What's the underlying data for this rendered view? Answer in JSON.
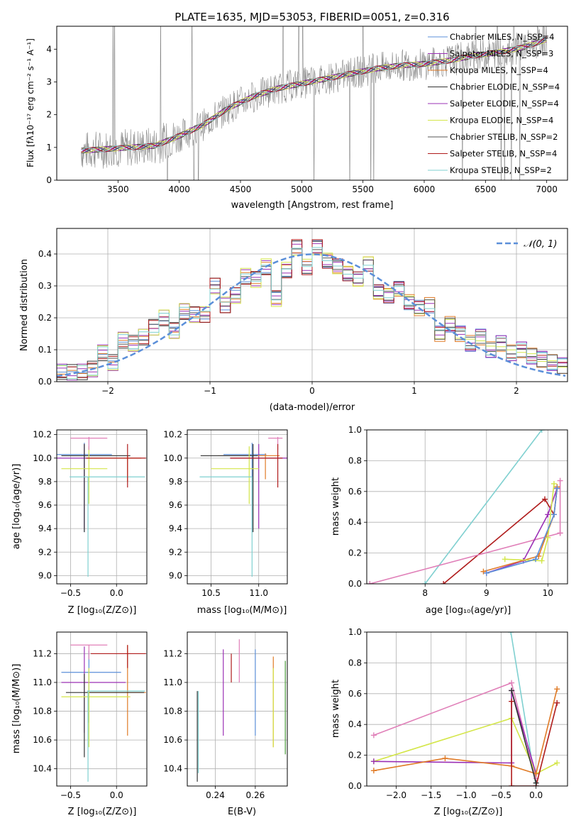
{
  "colors": {
    "grid": "#b0b0b0",
    "chabrier_miles": "#5b8fd9",
    "salpeter_miles": "#9b30b5",
    "kroupa_miles": "#e07b27",
    "chabrier_elodie": "#333333",
    "salpeter_elodie": "#9b30b5",
    "kroupa_elodie": "#d4e64a",
    "chabrier_stelib": "#555555",
    "salpeter_stelib": "#b01c1c",
    "kroupa_stelib": "#7fd0d0",
    "pink": "#e07fb8",
    "green": "#4a9a3a",
    "normal": "#5b8fd9"
  },
  "chart_data": [
    {
      "id": "spectrum",
      "type": "line",
      "title": "PLATE=1635, MJD=53053, FIBERID=0051, z=0.316",
      "xlabel": "wavelength [Angstrom, rest frame]",
      "ylabel": "Flux [fλ10⁻¹⁷ erg cm⁻² s⁻¹ A⁻¹]",
      "xlim": [
        3000,
        7170
      ],
      "ylim": [
        0,
        4.7
      ],
      "xticks": [
        "3500",
        "4000",
        "4500",
        "5000",
        "5500",
        "6000",
        "6500",
        "7000"
      ],
      "yticks": [
        "0",
        "1",
        "2",
        "3",
        "4"
      ],
      "legend_position": "top-right",
      "series": [
        {
          "name": "Chabrier MILES, N_SSP=4"
        },
        {
          "name": "Salpeter MILES, N_SSP=3"
        },
        {
          "name": "Kroupa MILES, N_SSP=4"
        },
        {
          "name": "Chabrier ELODIE, N_SSP=4"
        },
        {
          "name": "Salpeter ELODIE, N_SSP=4"
        },
        {
          "name": "Kroupa ELODIE, N_SSP=4"
        },
        {
          "name": "Chabrier STELIB, N_SSP=2"
        },
        {
          "name": "Salpeter STELIB, N_SSP=4"
        },
        {
          "name": "Kroupa STELIB, N_SSP=2"
        }
      ],
      "continuum_x": [
        3200,
        3400,
        3600,
        3800,
        4000,
        4200,
        4400,
        4600,
        4800,
        5000,
        5200,
        5400,
        5600,
        5800,
        6000,
        6200,
        6400,
        6600,
        6800,
        7000
      ],
      "continuum_y": [
        0.9,
        0.95,
        1.0,
        1.05,
        1.35,
        1.7,
        2.2,
        2.55,
        2.8,
        2.95,
        3.1,
        3.25,
        3.4,
        3.5,
        3.55,
        3.65,
        3.8,
        3.9,
        4.05,
        4.3
      ]
    },
    {
      "id": "residuals",
      "type": "line",
      "xlabel": "(data-model)/error",
      "ylabel": "Normed distribution",
      "xlim": [
        -2.5,
        2.5
      ],
      "ylim": [
        0,
        0.48
      ],
      "xticks": [
        "−2",
        "−1",
        "0",
        "1",
        "2"
      ],
      "yticks": [
        "0.0",
        "0.1",
        "0.2",
        "0.3",
        "0.4"
      ],
      "legend": "𝒩(0, 1)",
      "gaussian": {
        "mean": 0,
        "sigma": 1
      },
      "hist_centers": [
        -2.45,
        -2.35,
        -2.25,
        -2.15,
        -2.05,
        -1.95,
        -1.85,
        -1.75,
        -1.65,
        -1.55,
        -1.45,
        -1.35,
        -1.25,
        -1.15,
        -1.05,
        -0.95,
        -0.85,
        -0.75,
        -0.65,
        -0.55,
        -0.45,
        -0.35,
        -0.25,
        -0.15,
        -0.05,
        0.05,
        0.15,
        0.25,
        0.35,
        0.45,
        0.55,
        0.65,
        0.75,
        0.85,
        0.95,
        1.05,
        1.15,
        1.25,
        1.35,
        1.45,
        1.55,
        1.65,
        1.75,
        1.85,
        1.95,
        2.05,
        2.15,
        2.25,
        2.35,
        2.45
      ],
      "hist_values": [
        0.03,
        0.03,
        0.03,
        0.04,
        0.09,
        0.06,
        0.13,
        0.12,
        0.14,
        0.17,
        0.2,
        0.16,
        0.22,
        0.21,
        0.21,
        0.3,
        0.24,
        0.27,
        0.33,
        0.32,
        0.36,
        0.26,
        0.35,
        0.42,
        0.36,
        0.42,
        0.38,
        0.36,
        0.34,
        0.32,
        0.37,
        0.28,
        0.27,
        0.29,
        0.25,
        0.23,
        0.24,
        0.15,
        0.18,
        0.15,
        0.12,
        0.14,
        0.1,
        0.12,
        0.09,
        0.1,
        0.08,
        0.07,
        0.06,
        0.05
      ]
    },
    {
      "id": "age_vs_Z",
      "type": "scatter",
      "xlabel": "Z [log₁₀(Z/Z⊙)]",
      "ylabel": "age  [log₁₀(age/yr)]",
      "xlim": [
        -0.65,
        0.33
      ],
      "ylim": [
        8.93,
        10.24
      ],
      "xticks": [
        "−0.5",
        "0.0"
      ],
      "yticks": [
        "9.0",
        "9.2",
        "9.4",
        "9.6",
        "9.8",
        "10.0",
        "10.2"
      ],
      "points": [
        {
          "x": -0.35,
          "y": 10.03,
          "xerr": [
            0.5,
            0.3
          ],
          "yerr": [
            0.66,
            0.1
          ],
          "color": "chabrier_miles"
        },
        {
          "x": -0.35,
          "y": 10.0,
          "xerr": [
            0.3,
            0.2
          ],
          "yerr": [
            0.6,
            0.12
          ],
          "color": "salpeter_miles"
        },
        {
          "x": 0.12,
          "y": 10.0,
          "xerr": [
            0.45,
            0.15
          ],
          "yerr": [
            0.2,
            0.02
          ],
          "color": "kroupa_miles"
        },
        {
          "x": -0.35,
          "y": 10.02,
          "xerr": [
            0.25,
            0.5
          ],
          "yerr": [
            0.65,
            0.1
          ],
          "color": "chabrier_elodie"
        },
        {
          "x": -0.3,
          "y": 9.91,
          "xerr": [
            0.3,
            0.2
          ],
          "yerr": [
            0.3,
            0.19
          ],
          "color": "kroupa_elodie"
        },
        {
          "x": -0.31,
          "y": 9.84,
          "xerr": [
            0.2,
            0.62
          ],
          "yerr": [
            0.85,
            0.0
          ],
          "color": "kroupa_stelib"
        },
        {
          "x": -0.3,
          "y": 10.17,
          "xerr": [
            0.2,
            0.2
          ],
          "yerr": [
            0.1,
            0.01
          ],
          "color": "pink"
        },
        {
          "x": 0.12,
          "y": 10.0,
          "xerr": [
            0.45,
            0.2
          ],
          "yerr": [
            0.25,
            0.12
          ],
          "color": "salpeter_stelib"
        }
      ]
    },
    {
      "id": "age_vs_mass",
      "type": "scatter",
      "xlabel": "mass [log₁₀(M/M⊙)]",
      "xlim": [
        10.25,
        11.3
      ],
      "ylim": [
        8.93,
        10.24
      ],
      "xticks": [
        "10.5",
        "11.0"
      ],
      "yticks": [
        "9.0",
        "9.2",
        "9.4",
        "9.6",
        "9.8",
        "10.0",
        "10.2"
      ],
      "points": [
        {
          "x": 10.93,
          "y": 10.03,
          "xerr": [
            0.3,
            0.15
          ],
          "yerr": [
            0.66,
            0.1
          ],
          "color": "chabrier_miles"
        },
        {
          "x": 11.0,
          "y": 10.0,
          "xerr": [
            0.3,
            0.3
          ],
          "yerr": [
            0.6,
            0.12
          ],
          "color": "salpeter_miles"
        },
        {
          "x": 11.07,
          "y": 10.02,
          "xerr": [
            0.5,
            0.15
          ],
          "yerr": [
            0.2,
            0.02
          ],
          "color": "kroupa_miles"
        },
        {
          "x": 10.94,
          "y": 10.02,
          "xerr": [
            0.55,
            0.05
          ],
          "yerr": [
            0.65,
            0.1
          ],
          "color": "chabrier_elodie"
        },
        {
          "x": 10.9,
          "y": 9.91,
          "xerr": [
            0.4,
            0.1
          ],
          "yerr": [
            0.3,
            0.19
          ],
          "color": "kroupa_elodie"
        },
        {
          "x": 10.93,
          "y": 9.84,
          "xerr": [
            0.55,
            0.0
          ],
          "yerr": [
            0.85,
            0.0
          ],
          "color": "kroupa_stelib"
        },
        {
          "x": 11.2,
          "y": 10.17,
          "xerr": [
            0.1,
            0.05
          ],
          "yerr": [
            0.1,
            0.01
          ],
          "color": "pink"
        },
        {
          "x": 11.2,
          "y": 10.0,
          "xerr": [
            0.5,
            0.05
          ],
          "yerr": [
            0.25,
            0.12
          ],
          "color": "salpeter_stelib"
        }
      ]
    },
    {
      "id": "weight_vs_age",
      "type": "line",
      "xlabel": "age  [log₁₀(age/yr)]",
      "ylabel": "mass weight",
      "xlim": [
        7.05,
        10.32
      ],
      "ylim": [
        0,
        1.0
      ],
      "xticks": [
        "8",
        "9",
        "10"
      ],
      "yticks": [
        "0.0",
        "0.2",
        "0.4",
        "0.6",
        "0.8",
        "1.0"
      ],
      "series": [
        {
          "color": "kroupa_stelib",
          "x": [
            8.0,
            9.9
          ],
          "y": [
            0.0,
            1.0
          ]
        },
        {
          "color": "salpeter_stelib",
          "x": [
            8.3,
            9.95,
            10.1,
            10.15,
            10.15
          ],
          "y": [
            0.0,
            0.55,
            0.45,
            0.62,
            0.62
          ]
        },
        {
          "color": "pink",
          "x": [
            7.1,
            10.2,
            10.2,
            10.2
          ],
          "y": [
            0.0,
            0.33,
            0.67,
            0.33
          ]
        },
        {
          "color": "salpeter_miles",
          "x": [
            9.0,
            9.6,
            10.0,
            10.15
          ],
          "y": [
            0.07,
            0.15,
            0.45,
            0.62
          ]
        },
        {
          "color": "kroupa_miles",
          "x": [
            8.95,
            9.85,
            10.1,
            10.15
          ],
          "y": [
            0.08,
            0.18,
            0.45,
            0.63
          ]
        },
        {
          "color": "kroupa_elodie",
          "x": [
            9.3,
            9.9,
            10.0,
            10.1
          ],
          "y": [
            0.16,
            0.15,
            0.3,
            0.65
          ]
        },
        {
          "color": "chabrier_miles",
          "x": [
            9.0,
            9.8,
            10.1,
            10.15
          ],
          "y": [
            0.07,
            0.16,
            0.45,
            0.62
          ]
        }
      ]
    },
    {
      "id": "mass_vs_Z",
      "type": "scatter",
      "xlabel": "Z [log₁₀(Z/Z⊙)]",
      "ylabel": "mass [log₁₀(M/M⊙)]",
      "xlim": [
        -0.65,
        0.33
      ],
      "ylim": [
        10.28,
        11.35
      ],
      "xticks": [
        "−0.5",
        "0.0"
      ],
      "yticks": [
        "10.4",
        "10.6",
        "10.8",
        "11.0",
        "11.2"
      ],
      "points": [
        {
          "x": -0.3,
          "y": 11.07,
          "xerr": [
            0.3,
            0.35
          ],
          "yerr": [
            0.35,
            0.15
          ],
          "color": "chabrier_miles"
        },
        {
          "x": -0.35,
          "y": 11.0,
          "xerr": [
            0.25,
            0.45
          ],
          "yerr": [
            0.35,
            0.25
          ],
          "color": "salpeter_miles"
        },
        {
          "x": 0.12,
          "y": 10.93,
          "xerr": [
            0.45,
            0.2
          ],
          "yerr": [
            0.3,
            0.33
          ],
          "color": "kroupa_miles"
        },
        {
          "x": -0.35,
          "y": 10.93,
          "xerr": [
            0.2,
            0.65
          ],
          "yerr": [
            0.45,
            0.13
          ],
          "color": "chabrier_elodie"
        },
        {
          "x": -0.3,
          "y": 10.9,
          "xerr": [
            0.3,
            0.45
          ],
          "yerr": [
            0.35,
            0.2
          ],
          "color": "kroupa_elodie"
        },
        {
          "x": -0.31,
          "y": 10.94,
          "xerr": [
            0.01,
            0.62
          ],
          "yerr": [
            0.63,
            0.0
          ],
          "color": "kroupa_stelib"
        },
        {
          "x": -0.3,
          "y": 11.26,
          "xerr": [
            0.2,
            0.2
          ],
          "yerr": [
            0.1,
            0.0
          ],
          "color": "pink"
        },
        {
          "x": 0.12,
          "y": 11.2,
          "xerr": [
            0.4,
            0.2
          ],
          "yerr": [
            0.1,
            0.06
          ],
          "color": "salpeter_stelib"
        }
      ]
    },
    {
      "id": "mass_vs_EBV",
      "type": "scatter",
      "xlabel": "E(B-V)",
      "xlim": [
        0.226,
        0.276
      ],
      "ylim": [
        10.28,
        11.35
      ],
      "xticks": [
        "0.24",
        "0.26"
      ],
      "yticks": [
        "10.4",
        "10.6",
        "10.8",
        "11.0",
        "11.2"
      ],
      "points": [
        {
          "x": 0.26,
          "y": 10.93,
          "yerr": [
            0.3,
            0.3
          ],
          "color": "chabrier_miles"
        },
        {
          "x": 0.244,
          "y": 10.93,
          "yerr": [
            0.3,
            0.3
          ],
          "color": "salpeter_miles"
        },
        {
          "x": 0.248,
          "y": 11.1,
          "yerr": [
            0.1,
            0.1
          ],
          "color": "salpeter_stelib"
        },
        {
          "x": 0.252,
          "y": 11.15,
          "yerr": [
            0.15,
            0.15
          ],
          "color": "pink"
        },
        {
          "x": 0.269,
          "y": 10.85,
          "yerr": [
            0.3,
            0.33
          ],
          "color": "kroupa_miles"
        },
        {
          "x": 0.269,
          "y": 10.8,
          "yerr": [
            0.25,
            0.3
          ],
          "color": "kroupa_elodie"
        },
        {
          "x": 0.275,
          "y": 10.85,
          "yerr": [
            0.35,
            0.3
          ],
          "color": "green"
        },
        {
          "x": 0.231,
          "y": 10.65,
          "yerr": [
            0.34,
            0.29
          ],
          "color": "chabrier_elodie"
        },
        {
          "x": 0.2315,
          "y": 10.65,
          "yerr": [
            0.28,
            0.29
          ],
          "color": "kroupa_stelib"
        }
      ]
    },
    {
      "id": "weight_vs_Z",
      "type": "line",
      "xlabel": "Z [log₁₀(Z/Z⊙)]",
      "ylabel": "mass weight",
      "xlim": [
        -2.42,
        0.45
      ],
      "ylim": [
        0,
        1.0
      ],
      "xticks": [
        "−2.0",
        "−1.5",
        "−1.0",
        "−0.5",
        "0.0"
      ],
      "yticks": [
        "0.0",
        "0.2",
        "0.4",
        "0.6",
        "0.8",
        "1.0"
      ],
      "series": [
        {
          "color": "kroupa_stelib",
          "x": [
            -0.36,
            0.0
          ],
          "y": [
            1.0,
            0.0
          ]
        },
        {
          "color": "pink",
          "x": [
            -2.32,
            -0.35,
            0.0
          ],
          "y": [
            0.33,
            0.67,
            0.05
          ]
        },
        {
          "color": "kroupa_elodie",
          "x": [
            -2.32,
            -0.35,
            0.0,
            0.3
          ],
          "y": [
            0.16,
            0.44,
            0.08,
            0.15
          ]
        },
        {
          "color": "salpeter_miles",
          "x": [
            -2.32,
            -0.35,
            -0.35,
            0.0
          ],
          "y": [
            0.16,
            0.15,
            0.62,
            0.08
          ]
        },
        {
          "color": "kroupa_miles",
          "x": [
            -2.32,
            -1.3,
            -0.35,
            0.0,
            0.3
          ],
          "y": [
            0.1,
            0.18,
            0.13,
            0.08,
            0.63
          ]
        },
        {
          "color": "salpeter_stelib",
          "x": [
            -0.35,
            -0.35,
            0.0,
            0.3
          ],
          "y": [
            0.55,
            0.0,
            0.0,
            0.54
          ]
        },
        {
          "color": "chabrier_elodie",
          "x": [
            -0.35,
            0.0
          ],
          "y": [
            0.62,
            0.02
          ]
        }
      ]
    }
  ]
}
